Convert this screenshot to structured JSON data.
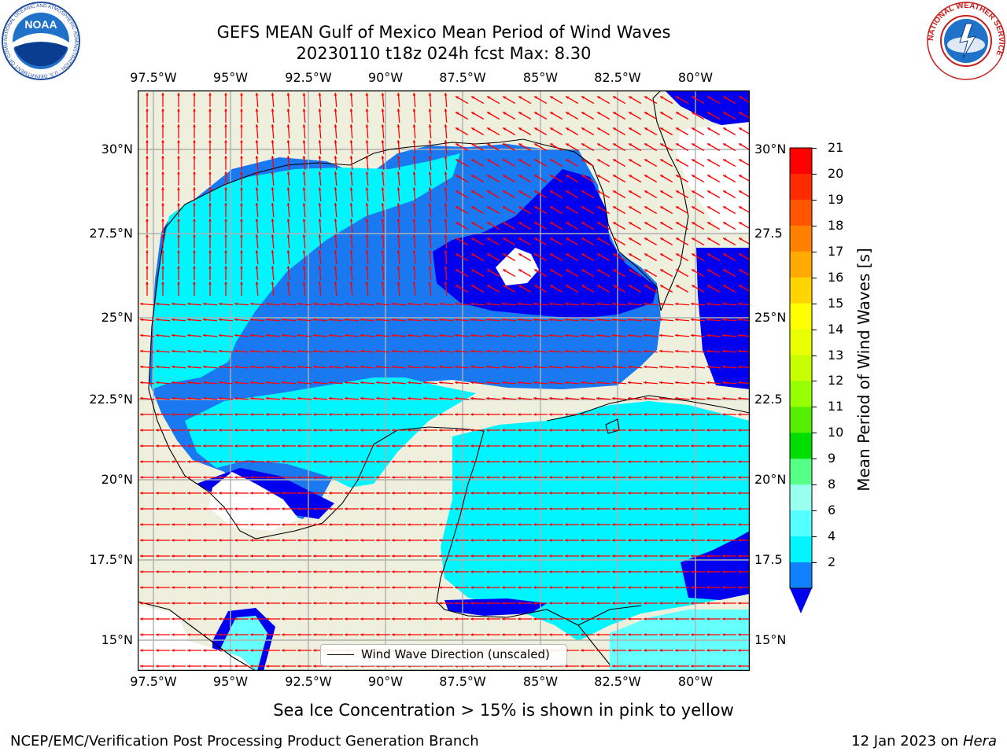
{
  "title": {
    "line1": "GEFS MEAN Gulf of Mexico Mean Period of Wind Waves",
    "line2": "20230110 t18z 024h fcst   Max: 8.30"
  },
  "logos": {
    "left_name": "NOAA",
    "left_ring_text": "NATIONAL OCEANIC AND ATMOSPHERIC ADMINISTRATION · U.S. DEPARTMENT OF COMMERCE",
    "right_ring_text": "NATIONAL WEATHER SERVICE"
  },
  "axes": {
    "lon_labels": [
      "97.5°W",
      "95°W",
      "92.5°W",
      "90°W",
      "87.5°W",
      "85°W",
      "82.5°W",
      "80°W"
    ],
    "lat_labels_left": [
      "30°N",
      "27.5°N",
      "25°N",
      "22.5°N",
      "20°N",
      "17.5°N",
      "15°N"
    ],
    "lat_labels_right": [
      "30°N",
      "27.5",
      "25°N",
      "22.5",
      "20°N",
      "17.5",
      "15°N"
    ]
  },
  "colorbar": {
    "label": "Mean Period of Wind Waves [s]",
    "ticks": [
      "21",
      "20",
      "19",
      "18",
      "17",
      "16",
      "15",
      "14",
      "13",
      "12",
      "11",
      "10",
      "9",
      "8",
      "6",
      "4",
      "2"
    ],
    "colors": [
      "#ff0000",
      "#ff2a00",
      "#ff5500",
      "#ff8000",
      "#ffaa00",
      "#ffd400",
      "#ffff00",
      "#eaff00",
      "#c8ff00",
      "#96ff00",
      "#55ee00",
      "#00dd00",
      "#55ff88",
      "#99ffee",
      "#55ffff",
      "#00f5ff",
      "#1080ff"
    ],
    "under_color": "#0000ee"
  },
  "map_colors": {
    "land": "#efefdd",
    "no_data": "#ffffff",
    "deep_blue": "#0000ee",
    "mid_blue": "#1a78f0",
    "cyan": "#00f5ff",
    "light_cyan": "#66ffff",
    "arrow": "#ff0000",
    "grid": "#b0b0b0"
  },
  "legend": {
    "label": "Wind Wave Direction (unscaled)"
  },
  "notes": {
    "ice": "Sea Ice Concentration > 15% is shown in pink to yellow"
  },
  "footer": {
    "left": "NCEP/EMC/Verification Post Processing Product Generation Branch",
    "right_date": "12 Jan 2023 on ",
    "right_machine": "Hera"
  }
}
